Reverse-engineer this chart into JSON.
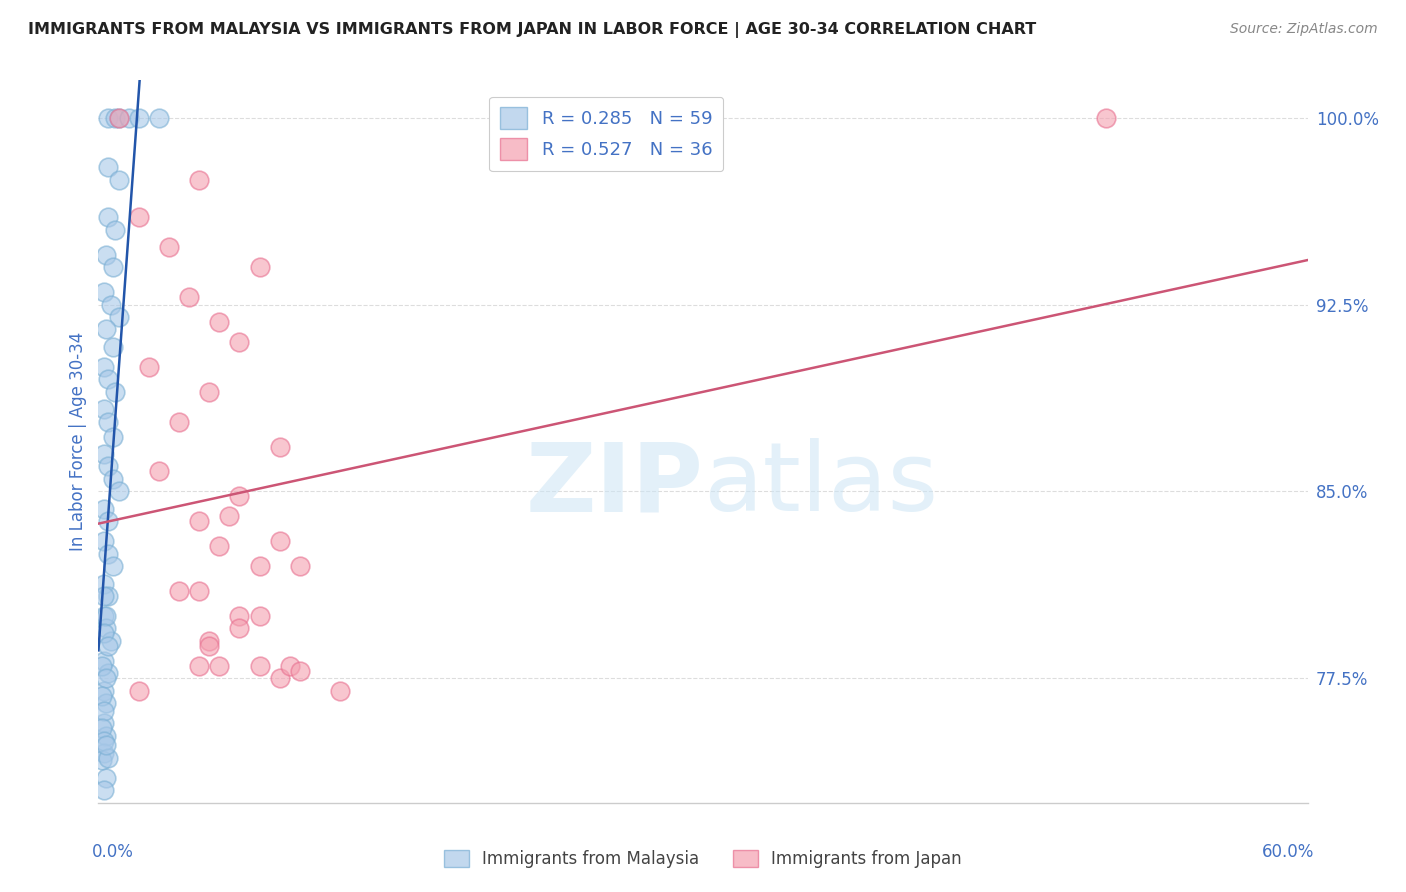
{
  "title": "IMMIGRANTS FROM MALAYSIA VS IMMIGRANTS FROM JAPAN IN LABOR FORCE | AGE 30-34 CORRELATION CHART",
  "source": "Source: ZipAtlas.com",
  "ylabel": "In Labor Force | Age 30-34",
  "ylabel_ticks": [
    "100.0%",
    "92.5%",
    "85.0%",
    "77.5%"
  ],
  "ylabel_values": [
    1.0,
    0.925,
    0.85,
    0.775
  ],
  "xmin": 0.0,
  "xmax": 0.6,
  "ymin": 0.725,
  "ymax": 1.015,
  "malaysia_color": "#a8c8e8",
  "japan_color": "#f4a0b0",
  "malaysia_edge_color": "#7aafd4",
  "japan_edge_color": "#e87090",
  "malaysia_line_color": "#2255aa",
  "japan_line_color": "#cc5575",
  "malaysia_R": 0.285,
  "malaysia_N": 59,
  "japan_R": 0.527,
  "japan_N": 36,
  "malaysia_points": [
    [
      0.005,
      1.0
    ],
    [
      0.008,
      1.0
    ],
    [
      0.01,
      1.0
    ],
    [
      0.015,
      1.0
    ],
    [
      0.02,
      1.0
    ],
    [
      0.03,
      1.0
    ],
    [
      0.005,
      0.98
    ],
    [
      0.01,
      0.975
    ],
    [
      0.005,
      0.96
    ],
    [
      0.008,
      0.955
    ],
    [
      0.004,
      0.945
    ],
    [
      0.007,
      0.94
    ],
    [
      0.003,
      0.93
    ],
    [
      0.006,
      0.925
    ],
    [
      0.01,
      0.92
    ],
    [
      0.004,
      0.915
    ],
    [
      0.007,
      0.908
    ],
    [
      0.003,
      0.9
    ],
    [
      0.005,
      0.895
    ],
    [
      0.008,
      0.89
    ],
    [
      0.003,
      0.883
    ],
    [
      0.005,
      0.878
    ],
    [
      0.007,
      0.872
    ],
    [
      0.003,
      0.865
    ],
    [
      0.005,
      0.86
    ],
    [
      0.007,
      0.855
    ],
    [
      0.01,
      0.85
    ],
    [
      0.003,
      0.843
    ],
    [
      0.005,
      0.838
    ],
    [
      0.003,
      0.83
    ],
    [
      0.005,
      0.825
    ],
    [
      0.007,
      0.82
    ],
    [
      0.003,
      0.813
    ],
    [
      0.005,
      0.808
    ],
    [
      0.003,
      0.8
    ],
    [
      0.004,
      0.795
    ],
    [
      0.006,
      0.79
    ],
    [
      0.003,
      0.782
    ],
    [
      0.005,
      0.777
    ],
    [
      0.003,
      0.77
    ],
    [
      0.004,
      0.765
    ],
    [
      0.003,
      0.757
    ],
    [
      0.004,
      0.752
    ],
    [
      0.003,
      0.745
    ],
    [
      0.003,
      0.808
    ],
    [
      0.004,
      0.8
    ],
    [
      0.003,
      0.793
    ],
    [
      0.005,
      0.788
    ],
    [
      0.002,
      0.78
    ],
    [
      0.004,
      0.775
    ],
    [
      0.002,
      0.768
    ],
    [
      0.003,
      0.762
    ],
    [
      0.002,
      0.755
    ],
    [
      0.003,
      0.75
    ],
    [
      0.002,
      0.742
    ],
    [
      0.004,
      0.735
    ],
    [
      0.003,
      0.73
    ],
    [
      0.005,
      0.743
    ],
    [
      0.004,
      0.748
    ]
  ],
  "japan_points": [
    [
      0.01,
      1.0
    ],
    [
      0.05,
      0.975
    ],
    [
      0.02,
      0.96
    ],
    [
      0.035,
      0.948
    ],
    [
      0.08,
      0.94
    ],
    [
      0.045,
      0.928
    ],
    [
      0.06,
      0.918
    ],
    [
      0.07,
      0.91
    ],
    [
      0.025,
      0.9
    ],
    [
      0.055,
      0.89
    ],
    [
      0.04,
      0.878
    ],
    [
      0.09,
      0.868
    ],
    [
      0.03,
      0.858
    ],
    [
      0.07,
      0.848
    ],
    [
      0.05,
      0.838
    ],
    [
      0.06,
      0.828
    ],
    [
      0.08,
      0.82
    ],
    [
      0.04,
      0.81
    ],
    [
      0.07,
      0.8
    ],
    [
      0.055,
      0.79
    ],
    [
      0.065,
      0.84
    ],
    [
      0.09,
      0.83
    ],
    [
      0.1,
      0.82
    ],
    [
      0.05,
      0.81
    ],
    [
      0.08,
      0.8
    ],
    [
      0.07,
      0.795
    ],
    [
      0.055,
      0.788
    ],
    [
      0.05,
      0.78
    ],
    [
      0.02,
      0.77
    ],
    [
      0.06,
      0.78
    ],
    [
      0.08,
      0.78
    ],
    [
      0.09,
      0.775
    ],
    [
      0.12,
      0.77
    ],
    [
      0.5,
      1.0
    ],
    [
      0.095,
      0.78
    ],
    [
      0.1,
      0.778
    ]
  ],
  "background_color": "#ffffff",
  "grid_color": "#dddddd",
  "title_color": "#222222",
  "axis_label_color": "#4472c4",
  "tick_label_color": "#4472c4",
  "legend_label_color": "#4472c4"
}
